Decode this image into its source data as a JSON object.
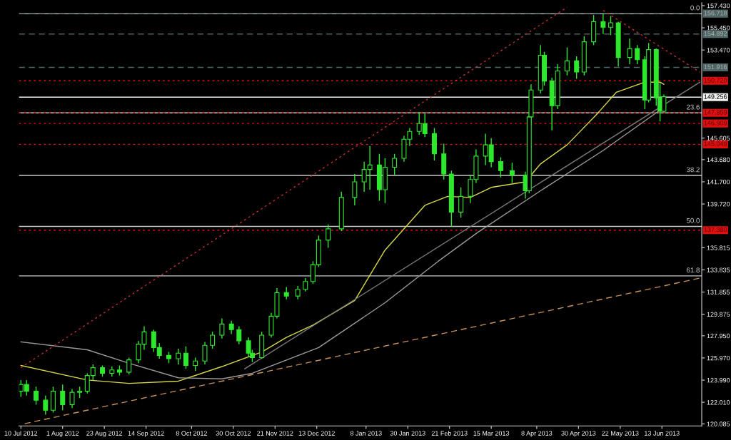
{
  "chart_data": {
    "type": "candlestick",
    "color": "#2ee82e",
    "x": [
      "2012-07-10",
      "2012-07-13",
      "2012-07-18",
      "2012-07-23",
      "2012-07-27",
      "2012-08-01",
      "2012-08-06",
      "2012-08-10",
      "2012-08-14",
      "2012-08-17",
      "2012-08-22",
      "2012-08-27",
      "2012-08-31",
      "2012-09-05",
      "2012-09-10",
      "2012-09-13",
      "2012-09-18",
      "2012-09-21",
      "2012-09-26",
      "2012-10-01",
      "2012-10-05",
      "2012-10-10",
      "2012-10-15",
      "2012-10-19",
      "2012-10-24",
      "2012-10-29",
      "2012-11-02",
      "2012-11-07",
      "2012-11-09",
      "2012-11-14",
      "2012-11-19",
      "2012-11-22",
      "2012-11-27",
      "2012-12-03",
      "2012-12-07",
      "2012-12-11",
      "2012-12-14",
      "2012-12-19",
      "2012-12-26",
      "2013-01-02",
      "2013-01-07",
      "2013-01-10",
      "2013-01-15",
      "2013-01-18",
      "2013-01-23",
      "2013-01-28",
      "2013-01-31",
      "2013-02-05",
      "2013-02-08",
      "2013-02-13",
      "2013-02-18",
      "2013-02-22",
      "2013-02-27",
      "2013-03-04",
      "2013-03-07",
      "2013-03-12",
      "2013-03-15",
      "2013-03-20",
      "2013-03-26",
      "2013-04-02",
      "2013-04-04",
      "2013-04-05",
      "2013-04-10",
      "2013-04-12",
      "2013-04-16",
      "2013-04-19",
      "2013-04-24",
      "2013-04-29",
      "2013-05-03",
      "2013-05-08",
      "2013-05-13",
      "2013-05-17",
      "2013-05-21",
      "2013-05-27",
      "2013-05-31",
      "2013-06-04",
      "2013-06-06",
      "2013-06-10",
      "2013-06-12",
      "2013-06-14"
    ],
    "ohlc": [
      [
        123.0,
        124.0,
        122.5,
        123.6
      ],
      [
        123.6,
        124.0,
        122.6,
        123.0
      ],
      [
        123.0,
        123.4,
        121.8,
        122.2
      ],
      [
        122.2,
        122.6,
        120.9,
        121.3
      ],
      [
        121.3,
        123.4,
        121.1,
        123.0
      ],
      [
        123.0,
        123.6,
        121.3,
        121.8
      ],
      [
        121.8,
        123.2,
        121.5,
        122.9
      ],
      [
        122.9,
        123.4,
        122.4,
        123.0
      ],
      [
        123.0,
        124.6,
        122.8,
        124.4
      ],
      [
        124.4,
        125.4,
        124.0,
        125.1
      ],
      [
        125.1,
        125.3,
        124.3,
        124.6
      ],
      [
        124.6,
        125.2,
        124.3,
        124.9
      ],
      [
        124.9,
        125.3,
        124.4,
        124.7
      ],
      [
        124.7,
        126.0,
        124.5,
        125.8
      ],
      [
        125.8,
        127.5,
        125.5,
        127.2
      ],
      [
        127.2,
        128.8,
        126.7,
        128.3
      ],
      [
        128.3,
        128.5,
        126.5,
        126.9
      ],
      [
        126.9,
        127.3,
        125.9,
        126.2
      ],
      [
        126.2,
        126.5,
        125.5,
        125.9
      ],
      [
        125.9,
        126.8,
        125.4,
        126.4
      ],
      [
        126.4,
        127.0,
        125.0,
        125.3
      ],
      [
        125.3,
        126.0,
        124.8,
        125.7
      ],
      [
        125.7,
        127.4,
        125.4,
        127.1
      ],
      [
        127.1,
        128.3,
        126.8,
        128.0
      ],
      [
        128.0,
        129.5,
        127.7,
        129.0
      ],
      [
        129.0,
        129.3,
        128.1,
        128.5
      ],
      [
        128.5,
        128.8,
        127.2,
        127.5
      ],
      [
        127.5,
        127.8,
        126.1,
        126.4
      ],
      [
        126.4,
        126.7,
        125.6,
        126.0
      ],
      [
        126.0,
        128.3,
        125.9,
        128.0
      ],
      [
        128.0,
        130.0,
        127.8,
        129.7
      ],
      [
        129.7,
        132.2,
        129.5,
        131.8
      ],
      [
        131.8,
        132.3,
        131.2,
        131.5
      ],
      [
        131.5,
        132.4,
        131.2,
        132.1
      ],
      [
        132.1,
        133.1,
        131.9,
        132.8
      ],
      [
        132.8,
        134.6,
        132.6,
        134.3
      ],
      [
        134.3,
        136.9,
        134.1,
        136.5
      ],
      [
        136.5,
        137.9,
        135.8,
        137.5
      ],
      [
        137.5,
        140.8,
        137.3,
        140.3
      ],
      [
        140.3,
        142.4,
        139.6,
        141.7
      ],
      [
        141.7,
        143.5,
        140.8,
        142.8
      ],
      [
        142.8,
        144.9,
        141.0,
        143.2
      ],
      [
        143.2,
        144.2,
        140.0,
        141.0
      ],
      [
        141.0,
        143.8,
        139.8,
        143.0
      ],
      [
        143.0,
        144.2,
        142.3,
        143.8
      ],
      [
        143.8,
        145.8,
        143.5,
        145.5
      ],
      [
        145.5,
        146.5,
        144.9,
        146.2
      ],
      [
        146.2,
        147.9,
        145.9,
        146.9
      ],
      [
        146.9,
        147.8,
        145.7,
        146.0
      ],
      [
        146.0,
        146.5,
        143.6,
        144.2
      ],
      [
        144.2,
        145.1,
        141.9,
        142.4
      ],
      [
        142.4,
        142.7,
        137.7,
        139.0
      ],
      [
        139.0,
        141.2,
        138.5,
        140.4
      ],
      [
        140.4,
        142.3,
        139.8,
        141.9
      ],
      [
        141.9,
        144.6,
        141.6,
        144.0
      ],
      [
        144.0,
        146.0,
        143.2,
        145.0
      ],
      [
        145.0,
        145.6,
        143.0,
        143.5
      ],
      [
        143.5,
        143.9,
        142.1,
        142.7
      ],
      [
        142.7,
        143.4,
        141.6,
        142.3
      ],
      [
        142.3,
        142.6,
        140.2,
        140.9
      ],
      [
        140.9,
        147.9,
        140.7,
        147.5
      ],
      [
        147.5,
        150.4,
        146.8,
        149.9
      ],
      [
        149.9,
        153.9,
        149.6,
        153.0
      ],
      [
        153.0,
        153.3,
        150.3,
        150.7
      ],
      [
        150.7,
        151.0,
        146.3,
        148.5
      ],
      [
        148.5,
        152.2,
        148.2,
        151.6
      ],
      [
        151.6,
        153.7,
        151.2,
        152.5
      ],
      [
        152.5,
        152.9,
        150.9,
        151.5
      ],
      [
        151.5,
        154.7,
        151.2,
        154.2
      ],
      [
        154.2,
        156.6,
        153.9,
        156.0
      ],
      [
        156.0,
        156.7,
        154.9,
        155.5
      ],
      [
        155.5,
        156.5,
        154.8,
        155.9
      ],
      [
        155.9,
        156.0,
        152.0,
        152.8
      ],
      [
        152.8,
        154.5,
        152.2,
        153.6
      ],
      [
        153.6,
        153.9,
        152.2,
        152.6
      ],
      [
        152.6,
        152.9,
        148.2,
        149.0
      ],
      [
        149.0,
        154.1,
        148.8,
        153.5
      ],
      [
        153.5,
        153.6,
        148.5,
        149.2
      ],
      [
        149.2,
        150.5,
        147.1,
        148.0
      ],
      [
        148.0,
        149.5,
        147.9,
        149.3
      ]
    ],
    "series": [
      {
        "type": "line",
        "color": "#d8d84a",
        "line_style": "solid",
        "x": [
          "2012-07-10",
          "2012-08-14",
          "2012-09-05",
          "2012-10-01",
          "2012-10-24",
          "2012-11-14",
          "2012-11-27",
          "2012-12-11",
          "2013-01-02",
          "2013-01-18",
          "2013-02-08",
          "2013-02-20",
          "2013-03-04",
          "2013-03-15",
          "2013-04-02",
          "2013-04-10",
          "2013-04-24",
          "2013-05-10",
          "2013-05-20",
          "2013-06-04",
          "2013-06-12",
          "2013-06-14"
        ],
        "values": [
          125.3,
          124.0,
          123.7,
          123.9,
          125.2,
          126.5,
          127.8,
          128.9,
          131.1,
          135.6,
          139.6,
          140.4,
          140.3,
          141.2,
          141.7,
          143.3,
          145.0,
          147.8,
          149.7,
          150.6,
          150.6,
          150.4
        ]
      },
      {
        "type": "line",
        "color": "#9a9a9a",
        "line_style": "solid",
        "x": [
          "2012-07-10",
          "2012-08-14",
          "2012-09-05",
          "2012-10-01",
          "2012-10-24",
          "2012-11-09",
          "2012-12-14",
          "2013-01-18",
          "2013-02-15",
          "2013-03-08",
          "2013-04-10",
          "2013-05-13",
          "2013-06-12"
        ],
        "values": [
          127.4,
          126.7,
          125.5,
          124.2,
          124.1,
          124.6,
          126.9,
          130.9,
          134.6,
          137.2,
          140.9,
          144.5,
          148.1
        ]
      },
      {
        "type": "line",
        "color": "#7a7a7a",
        "line_style": "solid",
        "x": [
          "2012-11-05",
          "2013-07-03"
        ],
        "values": [
          125.0,
          150.6
        ]
      },
      {
        "type": "line",
        "color": "#c03030",
        "line_style": "dotted",
        "x": [
          "2012-07-10",
          "2013-04-24"
        ],
        "values": [
          125.1,
          157.3
        ]
      },
      {
        "type": "line",
        "color": "#c03030",
        "line_style": "dotted",
        "x": [
          "2013-05-13",
          "2013-07-03"
        ],
        "values": [
          157.0,
          151.5
        ]
      },
      {
        "type": "line",
        "color": "#c8905a",
        "line_style": "dashed",
        "x": [
          "2012-07-12",
          "2013-07-03"
        ],
        "values": [
          120.1,
          133.1
        ]
      }
    ],
    "ref_lines": [
      {
        "axis": "y",
        "value": 156.718,
        "color": "#c8c8c8",
        "line_style": "solid"
      },
      {
        "axis": "y",
        "value": 147.859,
        "color": "#c8c8c8",
        "line_style": "solid"
      },
      {
        "axis": "y",
        "value": 142.27,
        "color": "#c8c8c8",
        "line_style": "solid"
      },
      {
        "axis": "y",
        "value": 137.72,
        "color": "#c8c8c8",
        "line_style": "solid"
      },
      {
        "axis": "y",
        "value": 133.3,
        "color": "#c8c8c8",
        "line_style": "solid"
      },
      {
        "axis": "y",
        "value": 156.718,
        "label": "156.718",
        "color": "#4f6666",
        "line_style": "dashed"
      },
      {
        "axis": "y",
        "value": 154.892,
        "label": "154.892",
        "color": "#4f6666",
        "line_style": "dashed"
      },
      {
        "axis": "y",
        "value": 151.916,
        "label": "151.916",
        "color": "#4f6666",
        "line_style": "dashed"
      },
      {
        "axis": "y",
        "value": 150.72,
        "label": "150.720",
        "color": "#e01010",
        "line_style": "dotted"
      },
      {
        "axis": "y",
        "value": 149.256,
        "label": "149.256",
        "color": "#f0f0f0",
        "line_style": "solid"
      },
      {
        "axis": "y",
        "value": 147.859,
        "label": "147.859",
        "color": "#e01010",
        "line_style": "dotted"
      },
      {
        "axis": "y",
        "value": 146.909,
        "label": "146.909",
        "color": "#e01010",
        "line_style": "dotted"
      },
      {
        "axis": "y",
        "value": 145.049,
        "label": "145.049",
        "color": "#e01010",
        "line_style": "dotted"
      },
      {
        "axis": "y",
        "value": 137.38,
        "label": "137.380",
        "color": "#e01010",
        "line_style": "dotted"
      }
    ],
    "annotations": [
      {
        "text": "0.0",
        "x": "2013-07-03",
        "y": 156.718
      },
      {
        "text": "23.6",
        "x": "2013-07-03",
        "y": 147.859
      },
      {
        "text": "38.2",
        "x": "2013-07-03",
        "y": 142.27
      },
      {
        "text": "50.0",
        "x": "2013-07-03",
        "y": 137.72
      },
      {
        "text": "61.8",
        "x": "2013-07-03",
        "y": 133.3
      }
    ],
    "xlim": [
      "2012-07-09",
      "2013-07-04"
    ],
    "ylim": [
      119.9,
      157.7
    ],
    "xticks": [
      {
        "value": "2012-07-10",
        "label": "10 Jul 2012"
      },
      {
        "value": "2012-08-01",
        "label": "1 Aug 2012"
      },
      {
        "value": "2012-08-23",
        "label": "23 Aug 2012"
      },
      {
        "value": "2012-09-14",
        "label": "14 Sep 2012"
      },
      {
        "value": "2012-10-08",
        "label": "8 Oct 2012"
      },
      {
        "value": "2012-10-30",
        "label": "30 Oct 2012"
      },
      {
        "value": "2012-11-21",
        "label": "21 Nov 2012"
      },
      {
        "value": "2012-12-13",
        "label": "13 Dec 2012"
      },
      {
        "value": "2013-01-08",
        "label": "8 Jan 2013"
      },
      {
        "value": "2013-01-30",
        "label": "30 Jan 2013"
      },
      {
        "value": "2013-02-21",
        "label": "21 Feb 2013"
      },
      {
        "value": "2013-03-15",
        "label": "15 Mar 2013"
      },
      {
        "value": "2013-04-08",
        "label": "8 Apr 2013"
      },
      {
        "value": "2013-04-30",
        "label": "30 Apr 2013"
      },
      {
        "value": "2013-05-22",
        "label": "22 May 2013"
      },
      {
        "value": "2013-06-13",
        "label": "13 Jun 2013"
      }
    ],
    "yticks": [
      {
        "value": 157.43,
        "label": "157.430"
      },
      {
        "value": 155.45,
        "label": "155.450"
      },
      {
        "value": 153.47,
        "label": "153.470"
      },
      {
        "value": 145.605,
        "label": "145.605"
      },
      {
        "value": 143.68,
        "label": "143.680"
      },
      {
        "value": 141.7,
        "label": "141.700"
      },
      {
        "value": 139.72,
        "label": "139.720"
      },
      {
        "value": 135.815,
        "label": "135.815"
      },
      {
        "value": 133.835,
        "label": "133.835"
      },
      {
        "value": 131.855,
        "label": "131.855"
      },
      {
        "value": 129.875,
        "label": "129.875"
      },
      {
        "value": 127.95,
        "label": "127.950"
      },
      {
        "value": 125.97,
        "label": "125.970"
      },
      {
        "value": 123.99,
        "label": "123.990"
      },
      {
        "value": 122.01,
        "label": "122.010"
      },
      {
        "value": 120.085,
        "label": "120.085"
      }
    ],
    "grid": false
  }
}
